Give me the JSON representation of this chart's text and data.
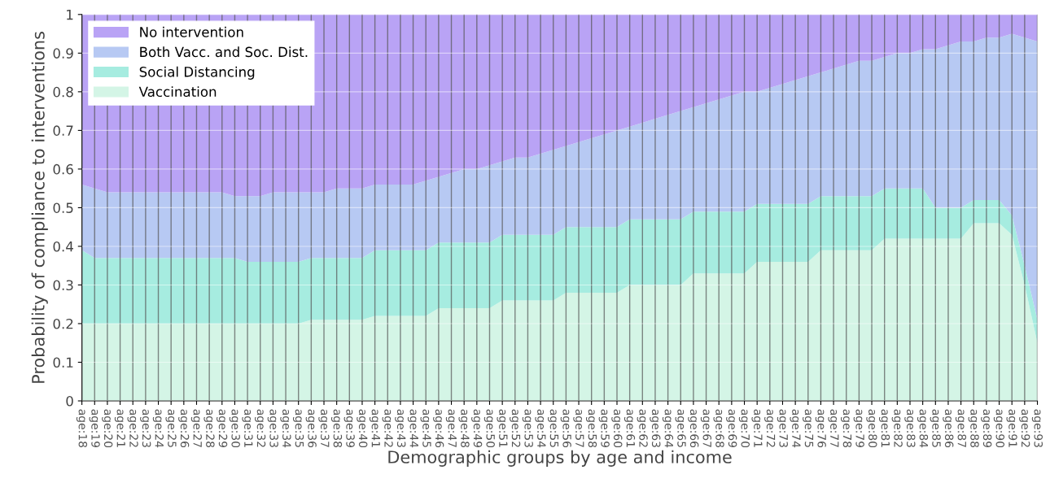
{
  "chart_data": {
    "type": "area",
    "stacked": true,
    "xlabel": "Demographic groups by age and income",
    "ylabel": "Probability of compliance to interventions",
    "categories": [
      "age:18",
      "age:19",
      "age:20",
      "age:21",
      "age:22",
      "age:23",
      "age:24",
      "age:25",
      "age:26",
      "age:27",
      "age:28",
      "age:29",
      "age:30",
      "age:31",
      "age:32",
      "age:33",
      "age:34",
      "age:35",
      "age:36",
      "age:37",
      "age:38",
      "age:39",
      "age:40",
      "age:41",
      "age:42",
      "age:43",
      "age:44",
      "age:45",
      "age:46",
      "age:47",
      "age:48",
      "age:49",
      "age:50",
      "age:51",
      "age:52",
      "age:53",
      "age:54",
      "age:55",
      "age:56",
      "age:57",
      "age:58",
      "age:59",
      "age:60",
      "age:61",
      "age:62",
      "age:63",
      "age:64",
      "age:65",
      "age:66",
      "age:67",
      "age:68",
      "age:69",
      "age:70",
      "age:71",
      "age:72",
      "age:73",
      "age:74",
      "age:75",
      "age:76",
      "age:77",
      "age:78",
      "age:79",
      "age:80",
      "age:81",
      "age:82",
      "age:83",
      "age:84",
      "age:85",
      "age:86",
      "age:87",
      "age:88",
      "age:89",
      "age:90",
      "age:91",
      "age:92",
      "age:93"
    ],
    "series": [
      {
        "name": "Vaccination",
        "color": "#d4f5e6",
        "values": [
          0.2,
          0.2,
          0.2,
          0.2,
          0.2,
          0.2,
          0.2,
          0.2,
          0.2,
          0.2,
          0.2,
          0.2,
          0.2,
          0.2,
          0.2,
          0.2,
          0.2,
          0.2,
          0.21,
          0.21,
          0.21,
          0.21,
          0.21,
          0.22,
          0.22,
          0.22,
          0.22,
          0.22,
          0.24,
          0.24,
          0.24,
          0.24,
          0.24,
          0.26,
          0.26,
          0.26,
          0.26,
          0.26,
          0.28,
          0.28,
          0.28,
          0.28,
          0.28,
          0.3,
          0.3,
          0.3,
          0.3,
          0.3,
          0.33,
          0.33,
          0.33,
          0.33,
          0.33,
          0.36,
          0.36,
          0.36,
          0.36,
          0.36,
          0.39,
          0.39,
          0.39,
          0.39,
          0.39,
          0.42,
          0.42,
          0.42,
          0.42,
          0.42,
          0.42,
          0.42,
          0.46,
          0.46,
          0.46,
          0.43,
          0.3,
          0.15
        ]
      },
      {
        "name": "Social Distancing",
        "color": "#a6ece0",
        "values": [
          0.19,
          0.17,
          0.17,
          0.17,
          0.17,
          0.17,
          0.17,
          0.17,
          0.17,
          0.17,
          0.17,
          0.17,
          0.17,
          0.16,
          0.16,
          0.16,
          0.16,
          0.16,
          0.16,
          0.16,
          0.16,
          0.16,
          0.16,
          0.17,
          0.17,
          0.17,
          0.17,
          0.17,
          0.17,
          0.17,
          0.17,
          0.17,
          0.17,
          0.17,
          0.17,
          0.17,
          0.17,
          0.17,
          0.17,
          0.17,
          0.17,
          0.17,
          0.17,
          0.17,
          0.17,
          0.17,
          0.17,
          0.17,
          0.16,
          0.16,
          0.16,
          0.16,
          0.16,
          0.15,
          0.15,
          0.15,
          0.15,
          0.15,
          0.14,
          0.14,
          0.14,
          0.14,
          0.14,
          0.13,
          0.13,
          0.13,
          0.13,
          0.08,
          0.08,
          0.08,
          0.06,
          0.06,
          0.06,
          0.05,
          0.05,
          0.06
        ]
      },
      {
        "name": "Both Vacc. and Soc. Dist.",
        "color": "#b7c9f3",
        "values": [
          0.17,
          0.18,
          0.17,
          0.17,
          0.17,
          0.17,
          0.17,
          0.17,
          0.17,
          0.17,
          0.17,
          0.17,
          0.16,
          0.17,
          0.17,
          0.18,
          0.18,
          0.18,
          0.17,
          0.17,
          0.18,
          0.18,
          0.18,
          0.17,
          0.17,
          0.17,
          0.17,
          0.18,
          0.17,
          0.18,
          0.19,
          0.19,
          0.2,
          0.19,
          0.2,
          0.2,
          0.21,
          0.22,
          0.21,
          0.22,
          0.23,
          0.24,
          0.25,
          0.24,
          0.25,
          0.26,
          0.27,
          0.28,
          0.27,
          0.28,
          0.29,
          0.3,
          0.31,
          0.29,
          0.3,
          0.31,
          0.32,
          0.33,
          0.32,
          0.33,
          0.34,
          0.35,
          0.35,
          0.34,
          0.35,
          0.35,
          0.36,
          0.41,
          0.42,
          0.43,
          0.41,
          0.42,
          0.42,
          0.47,
          0.59,
          0.72
        ]
      },
      {
        "name": "No intervention",
        "color": "#b9a3f5",
        "values": [
          0.44,
          0.45,
          0.46,
          0.46,
          0.46,
          0.46,
          0.46,
          0.46,
          0.46,
          0.46,
          0.46,
          0.46,
          0.47,
          0.47,
          0.47,
          0.46,
          0.46,
          0.46,
          0.46,
          0.46,
          0.45,
          0.45,
          0.45,
          0.44,
          0.44,
          0.44,
          0.44,
          0.43,
          0.42,
          0.41,
          0.4,
          0.4,
          0.39,
          0.38,
          0.37,
          0.37,
          0.36,
          0.35,
          0.34,
          0.33,
          0.32,
          0.31,
          0.3,
          0.29,
          0.28,
          0.27,
          0.26,
          0.25,
          0.24,
          0.23,
          0.22,
          0.21,
          0.2,
          0.2,
          0.19,
          0.18,
          0.17,
          0.16,
          0.15,
          0.14,
          0.13,
          0.12,
          0.12,
          0.11,
          0.1,
          0.1,
          0.09,
          0.09,
          0.08,
          0.07,
          0.07,
          0.06,
          0.06,
          0.05,
          0.06,
          0.07
        ]
      }
    ],
    "ylim": [
      0,
      1
    ],
    "yticks": [
      0,
      0.1,
      0.2,
      0.3,
      0.4,
      0.5,
      0.6,
      0.7,
      0.8,
      0.9,
      1
    ],
    "grid": true,
    "legend": "top left"
  }
}
